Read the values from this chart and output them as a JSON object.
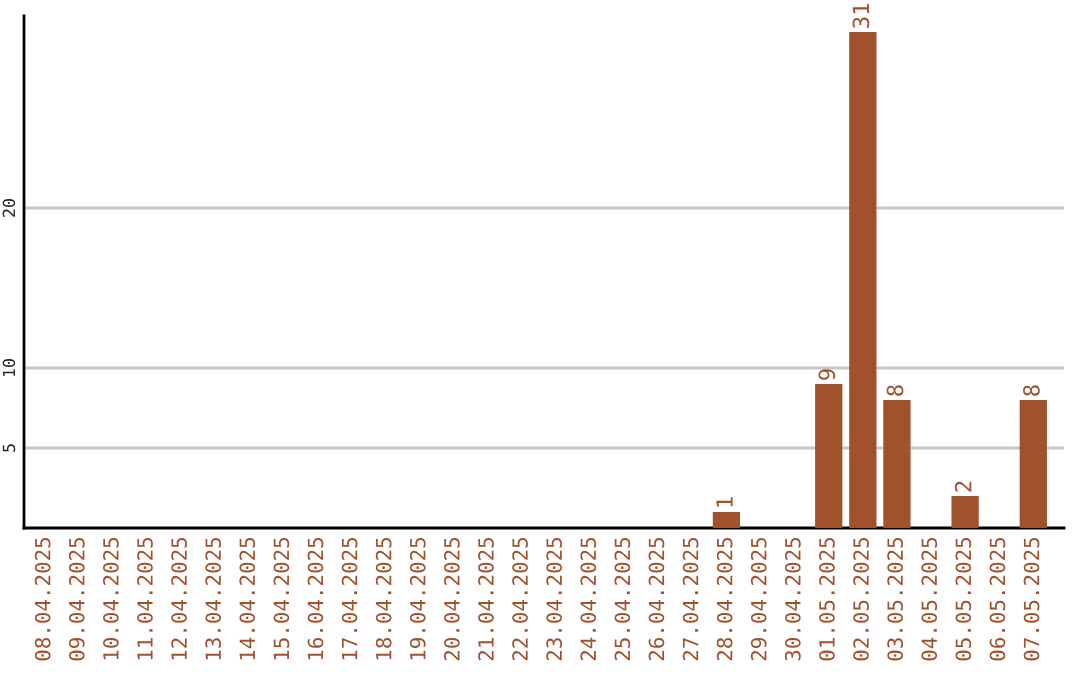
{
  "chart_data": {
    "type": "bar",
    "categories": [
      "08.04.2025",
      "09.04.2025",
      "10.04.2025",
      "11.04.2025",
      "12.04.2025",
      "13.04.2025",
      "14.04.2025",
      "15.04.2025",
      "16.04.2025",
      "17.04.2025",
      "18.04.2025",
      "19.04.2025",
      "20.04.2025",
      "21.04.2025",
      "22.04.2025",
      "23.04.2025",
      "24.04.2025",
      "25.04.2025",
      "26.04.2025",
      "27.04.2025",
      "28.04.2025",
      "29.04.2025",
      "30.04.2025",
      "01.05.2025",
      "02.05.2025",
      "03.05.2025",
      "04.05.2025",
      "05.05.2025",
      "06.05.2025",
      "07.05.2025"
    ],
    "values": [
      0,
      0,
      0,
      0,
      0,
      0,
      0,
      0,
      0,
      0,
      0,
      0,
      0,
      0,
      0,
      0,
      0,
      0,
      0,
      0,
      1,
      0,
      0,
      9,
      31,
      8,
      0,
      2,
      0,
      8
    ],
    "value_labels": [
      null,
      null,
      null,
      null,
      null,
      null,
      null,
      null,
      null,
      null,
      null,
      null,
      null,
      null,
      null,
      null,
      null,
      null,
      null,
      null,
      "1",
      null,
      null,
      "9",
      "31",
      "8",
      null,
      "2",
      null,
      "8"
    ],
    "color": "#a0522d",
    "ylim": [
      0,
      32
    ],
    "yticks": [
      5,
      10,
      20
    ],
    "grid": "y"
  }
}
